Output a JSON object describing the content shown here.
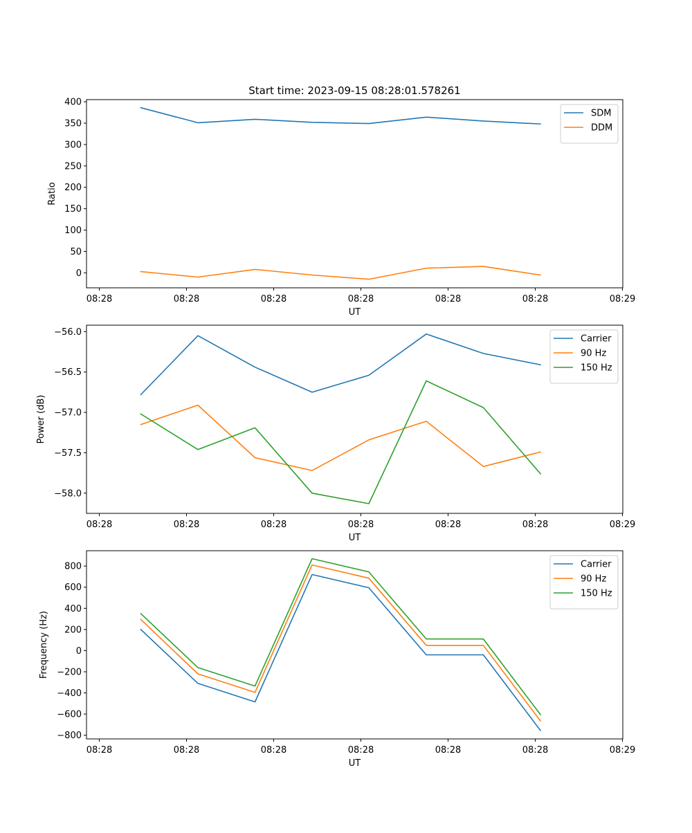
{
  "chart_data": [
    {
      "type": "line",
      "title": "Start time: 2023-09-15 08:28:01.578261",
      "xlabel": "UT",
      "ylabel": "Ratio",
      "x_ticks": [
        "08:28",
        "08:28",
        "08:28",
        "08:28",
        "08:28",
        "08:28",
        "08:29"
      ],
      "ylim": [
        -35,
        405
      ],
      "y_ticks": [
        "0",
        "50",
        "100",
        "150",
        "200",
        "250",
        "300",
        "350",
        "400"
      ],
      "y_tick_values": [
        0,
        50,
        100,
        150,
        200,
        250,
        300,
        350,
        400
      ],
      "legend": "top-right",
      "series": [
        {
          "name": "SDM",
          "color": "#1f77b4",
          "values": [
            386,
            351,
            359,
            352,
            349,
            364,
            355,
            348
          ]
        },
        {
          "name": "DDM",
          "color": "#ff7f0e",
          "values": [
            3,
            -10,
            8,
            -5,
            -15,
            11,
            15,
            -5
          ]
        }
      ]
    },
    {
      "type": "line",
      "title": "",
      "xlabel": "UT",
      "ylabel": "Power (dB)",
      "x_ticks": [
        "08:28",
        "08:28",
        "08:28",
        "08:28",
        "08:28",
        "08:28",
        "08:29"
      ],
      "ylim": [
        -58.25,
        -55.92
      ],
      "y_ticks": [
        "−58.0",
        "−57.5",
        "−57.0",
        "−56.5",
        "−56.0"
      ],
      "y_tick_values": [
        -58.0,
        -57.5,
        -57.0,
        -56.5,
        -56.0
      ],
      "legend": "top-right",
      "series": [
        {
          "name": "Carrier",
          "color": "#1f77b4",
          "values": [
            -56.78,
            -56.05,
            -56.44,
            -56.75,
            -56.54,
            -56.03,
            -56.27,
            -56.41
          ]
        },
        {
          "name": "90 Hz",
          "color": "#ff7f0e",
          "values": [
            -57.15,
            -56.91,
            -57.56,
            -57.72,
            -57.34,
            -57.11,
            -57.67,
            -57.49
          ]
        },
        {
          "name": "150 Hz",
          "color": "#2ca02c",
          "values": [
            -57.02,
            -57.46,
            -57.19,
            -58.0,
            -58.13,
            -56.61,
            -56.94,
            -57.76
          ]
        }
      ]
    },
    {
      "type": "line",
      "title": "",
      "xlabel": "UT",
      "ylabel": "Frequency (Hz)",
      "x_ticks": [
        "08:28",
        "08:28",
        "08:28",
        "08:28",
        "08:28",
        "08:28",
        "08:29"
      ],
      "ylim": [
        -835,
        945
      ],
      "y_ticks": [
        "−800",
        "−600",
        "−400",
        "−200",
        "0",
        "200",
        "400",
        "600",
        "800"
      ],
      "y_tick_values": [
        -800,
        -600,
        -400,
        -200,
        0,
        200,
        400,
        600,
        800
      ],
      "legend": "top-right",
      "series": [
        {
          "name": "Carrier",
          "color": "#1f77b4",
          "values": [
            200,
            -310,
            -485,
            720,
            595,
            -40,
            -40,
            -755
          ]
        },
        {
          "name": "90 Hz",
          "color": "#ff7f0e",
          "values": [
            295,
            -220,
            -395,
            810,
            685,
            50,
            50,
            -665
          ]
        },
        {
          "name": "150 Hz",
          "color": "#2ca02c",
          "values": [
            350,
            -160,
            -335,
            870,
            745,
            110,
            110,
            -605
          ]
        }
      ]
    }
  ]
}
